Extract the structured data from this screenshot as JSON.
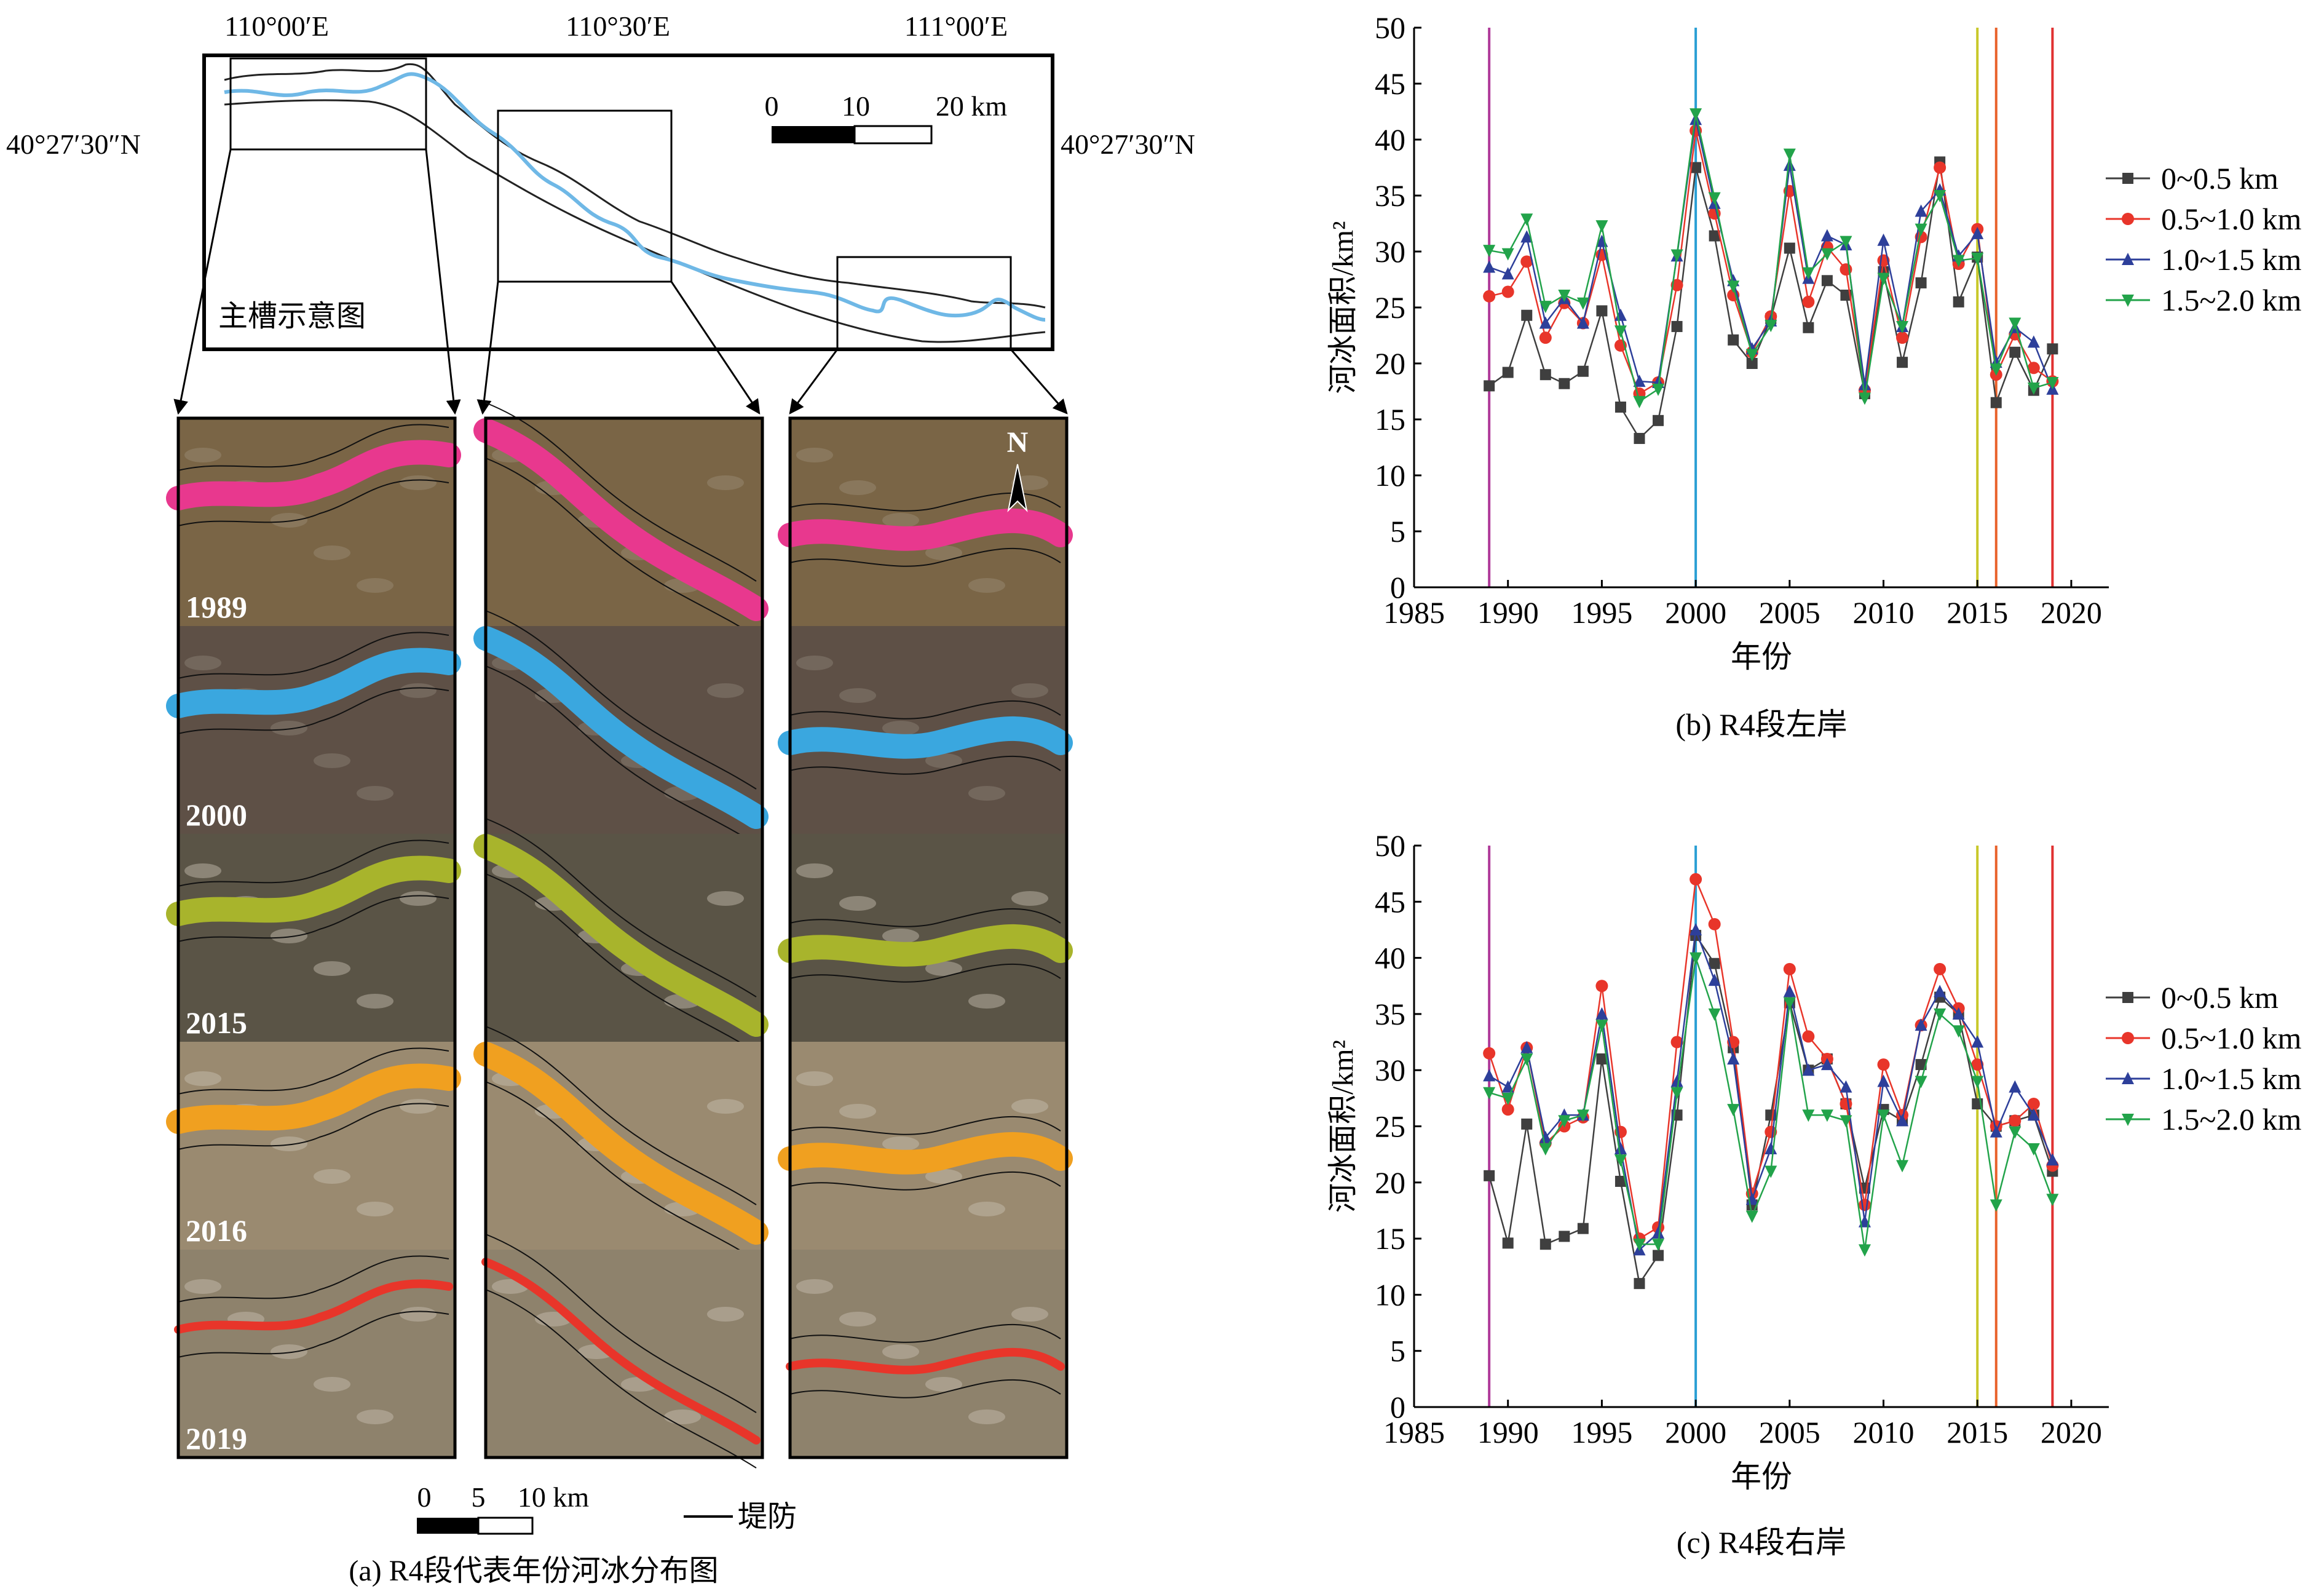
{
  "map_panel": {
    "lon_labels": [
      "110°00′E",
      "110°30′E",
      "111°00′E"
    ],
    "lat_label_left": "40°27′30″N",
    "lat_label_right": "40°27′30″N",
    "overview_scale": {
      "ticks": [
        "0",
        "10",
        "20 km"
      ]
    },
    "overview_title": "主槽示意图",
    "north_label": "N",
    "years": [
      "1989",
      "2000",
      "2015",
      "2016",
      "2019"
    ],
    "year_colors": [
      "#e8388e",
      "#3aa7df",
      "#a8b42c",
      "#f0a020",
      "#e8352a"
    ],
    "bottom_scale": {
      "ticks": [
        "0",
        "5",
        "10 km"
      ]
    },
    "levee_legend": "堤防",
    "caption": "(a) R4段代表年份河冰分布图"
  },
  "chart_data": [
    {
      "type": "line",
      "caption": "(b) R4段左岸",
      "xlabel": "年份",
      "ylabel": "河冰面积/km²",
      "xlim": [
        1985,
        2022
      ],
      "ylim": [
        0,
        50
      ],
      "xticks": [
        1985,
        1990,
        1995,
        2000,
        2005,
        2010,
        2015,
        2020
      ],
      "yticks": [
        0,
        5,
        10,
        15,
        20,
        25,
        30,
        35,
        40,
        45,
        50
      ],
      "x": [
        1989,
        1990,
        1991,
        1992,
        1993,
        1994,
        1995,
        1996,
        1997,
        1998,
        1999,
        2000,
        2001,
        2002,
        2003,
        2004,
        2005,
        2006,
        2007,
        2008,
        2009,
        2010,
        2011,
        2012,
        2013,
        2014,
        2015,
        2016,
        2017,
        2018,
        2019
      ],
      "series": [
        {
          "name": "0~0.5 km",
          "color": "#3f3f3f",
          "marker": "square",
          "values": [
            18.0,
            19.2,
            24.3,
            19.0,
            18.2,
            19.3,
            24.7,
            16.1,
            13.3,
            14.9,
            23.3,
            37.5,
            31.4,
            22.1,
            20.0,
            24.0,
            30.3,
            23.2,
            27.4,
            26.1,
            17.3,
            28.2,
            20.1,
            27.2,
            38.0,
            25.5,
            29.5,
            16.5,
            21.0,
            17.6,
            21.3
          ]
        },
        {
          "name": "0.5~1.0 km",
          "color": "#e8352a",
          "marker": "circle",
          "values": [
            26.0,
            26.4,
            29.1,
            22.3,
            25.4,
            23.6,
            29.7,
            21.6,
            17.3,
            18.3,
            27.0,
            40.8,
            33.4,
            26.1,
            21.0,
            24.2,
            35.4,
            25.5,
            30.4,
            28.4,
            17.6,
            29.2,
            22.3,
            31.3,
            37.5,
            28.9,
            32.0,
            19.0,
            22.6,
            19.6,
            18.4
          ]
        },
        {
          "name": "1.0~1.5 km",
          "color": "#2d3f9a",
          "marker": "triangle-up",
          "values": [
            28.6,
            28.0,
            31.3,
            23.6,
            25.8,
            23.6,
            30.9,
            24.3,
            18.4,
            18.3,
            29.6,
            41.8,
            34.3,
            27.4,
            21.3,
            23.8,
            37.7,
            27.6,
            31.4,
            30.6,
            18.1,
            31.0,
            23.3,
            33.6,
            35.5,
            29.6,
            31.6,
            20.1,
            23.2,
            21.9,
            17.7
          ]
        },
        {
          "name": "1.5~2.0 km",
          "color": "#22a34a",
          "marker": "triangle-down",
          "values": [
            30.1,
            29.8,
            32.9,
            25.1,
            26.1,
            25.4,
            32.3,
            22.9,
            16.6,
            17.7,
            29.7,
            42.3,
            34.8,
            26.9,
            20.8,
            23.4,
            38.7,
            28.1,
            29.8,
            30.9,
            16.9,
            27.6,
            23.3,
            32.0,
            35.0,
            29.2,
            29.4,
            19.5,
            23.6,
            17.8,
            18.3
          ]
        }
      ],
      "vlines": [
        {
          "x": 1989,
          "color": "#b03a9a"
        },
        {
          "x": 2000,
          "color": "#2a9fd4"
        },
        {
          "x": 2015,
          "color": "#c8c82a"
        },
        {
          "x": 2016,
          "color": "#e8612a"
        },
        {
          "x": 2019,
          "color": "#e03030"
        }
      ],
      "legend": "right"
    },
    {
      "type": "line",
      "caption": "(c) R4段右岸",
      "xlabel": "年份",
      "ylabel": "河冰面积/km²",
      "xlim": [
        1985,
        2022
      ],
      "ylim": [
        0,
        50
      ],
      "xticks": [
        1985,
        1990,
        1995,
        2000,
        2005,
        2010,
        2015,
        2020
      ],
      "yticks": [
        0,
        5,
        10,
        15,
        20,
        25,
        30,
        35,
        40,
        45,
        50
      ],
      "x": [
        1989,
        1990,
        1991,
        1992,
        1993,
        1994,
        1995,
        1996,
        1997,
        1998,
        1999,
        2000,
        2001,
        2002,
        2003,
        2004,
        2005,
        2006,
        2007,
        2008,
        2009,
        2010,
        2011,
        2012,
        2013,
        2014,
        2015,
        2016,
        2017,
        2018,
        2019
      ],
      "series": [
        {
          "name": "0~0.5 km",
          "color": "#3f3f3f",
          "marker": "square",
          "values": [
            20.6,
            14.6,
            25.2,
            14.5,
            15.2,
            15.9,
            31.0,
            20.1,
            11.0,
            13.5,
            26.0,
            42.0,
            39.5,
            32.0,
            18.0,
            26.0,
            36.0,
            30.0,
            31.0,
            27.0,
            19.5,
            26.5,
            25.5,
            30.5,
            36.5,
            35.0,
            27.0,
            25.0,
            25.5,
            26.0,
            21.0
          ]
        },
        {
          "name": "0.5~1.0 km",
          "color": "#e8352a",
          "marker": "circle",
          "values": [
            31.5,
            26.5,
            32.0,
            23.5,
            25.0,
            25.8,
            37.5,
            24.5,
            15.0,
            16.0,
            32.5,
            47.0,
            43.0,
            32.5,
            19.0,
            24.5,
            39.0,
            33.0,
            31.0,
            27.0,
            18.0,
            30.5,
            26.0,
            34.0,
            39.0,
            35.5,
            30.5,
            25.0,
            25.5,
            27.0,
            21.5
          ]
        },
        {
          "name": "1.0~1.5 km",
          "color": "#2d3f9a",
          "marker": "triangle-up",
          "values": [
            29.5,
            28.5,
            32.0,
            24.0,
            26.0,
            26.0,
            35.0,
            23.0,
            14.0,
            15.5,
            29.0,
            42.5,
            38.0,
            31.0,
            18.5,
            23.0,
            37.0,
            30.0,
            30.5,
            28.5,
            16.5,
            29.0,
            25.5,
            34.0,
            37.0,
            35.0,
            32.5,
            24.5,
            28.5,
            26.0,
            22.0
          ]
        },
        {
          "name": "1.5~2.0 km",
          "color": "#22a34a",
          "marker": "triangle-down",
          "values": [
            28.0,
            27.5,
            31.0,
            23.0,
            25.5,
            26.0,
            34.0,
            22.0,
            14.5,
            14.5,
            28.0,
            40.0,
            35.0,
            26.5,
            17.0,
            21.0,
            36.0,
            26.0,
            26.0,
            25.5,
            14.0,
            26.0,
            21.5,
            29.0,
            35.0,
            33.5,
            29.0,
            18.0,
            24.5,
            23.0,
            18.5
          ]
        }
      ],
      "vlines": [
        {
          "x": 1989,
          "color": "#b03a9a"
        },
        {
          "x": 2000,
          "color": "#2a9fd4"
        },
        {
          "x": 2015,
          "color": "#c8c82a"
        },
        {
          "x": 2016,
          "color": "#e8612a"
        },
        {
          "x": 2019,
          "color": "#e03030"
        }
      ],
      "legend": "right"
    }
  ]
}
